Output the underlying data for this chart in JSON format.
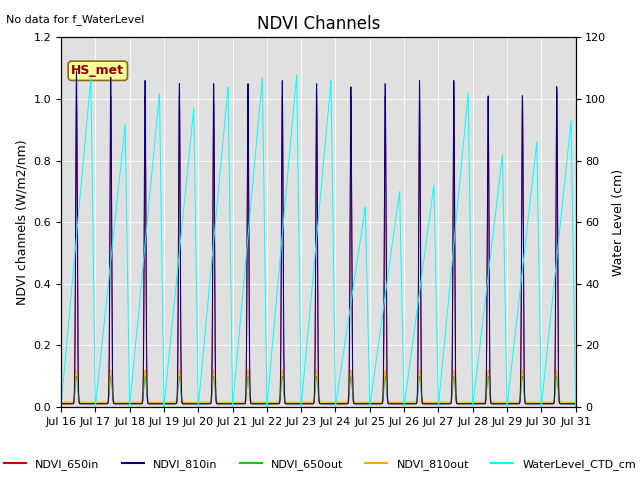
{
  "title": "NDVI Channels",
  "ylabel_left": "NDVI channels (W/m2/nm)",
  "ylabel_right": "Water Level (cm)",
  "note": "No data for f_WaterLevel",
  "annotation": "HS_met",
  "ylim_left": [
    0.0,
    1.2
  ],
  "ylim_right": [
    0,
    120
  ],
  "background_color": "#e0e0e0",
  "series": {
    "NDVI_650in": {
      "color": "#cc0000",
      "label": "NDVI_650in"
    },
    "NDVI_810in": {
      "color": "#00008b",
      "label": "NDVI_810in"
    },
    "NDVI_650out": {
      "color": "#00cc00",
      "label": "NDVI_650out"
    },
    "NDVI_810out": {
      "color": "#ffa500",
      "label": "NDVI_810out"
    },
    "WaterLevel": {
      "color": "#00ffff",
      "label": "WaterLevel_CTD_cm"
    }
  },
  "xtick_labels": [
    "Jul 16",
    "Jul 17",
    "Jul 18",
    "Jul 19",
    "Jul 20",
    "Jul 21",
    "Jul 22",
    "Jul 23",
    "Jul 24",
    "Jul 25",
    "Jul 26",
    "Jul 27",
    "Jul 28",
    "Jul 29",
    "Jul 30",
    "Jul 31"
  ],
  "yticks_left": [
    0.0,
    0.2,
    0.4,
    0.6,
    0.8,
    1.0,
    1.2
  ],
  "yticks_right": [
    0,
    20,
    40,
    60,
    80,
    100,
    120
  ],
  "wl_peak_scale": [
    1.07,
    0.92,
    1.02,
    0.97,
    1.04,
    1.07,
    1.08,
    1.06,
    0.65,
    0.7,
    0.72,
    1.02,
    0.82,
    0.86,
    0.93
  ],
  "ndvi_in_scale": [
    1.0,
    1.0,
    1.0,
    1.0,
    0.98,
    1.0,
    1.0,
    1.0,
    1.0,
    1.0,
    1.0,
    1.0,
    0.99,
    1.0,
    1.02
  ],
  "ndvi_810_scale": [
    1.08,
    1.06,
    1.05,
    1.04,
    1.04,
    1.04,
    1.05,
    1.04,
    1.03,
    1.04,
    1.05,
    1.05,
    1.0,
    1.0,
    1.03
  ]
}
